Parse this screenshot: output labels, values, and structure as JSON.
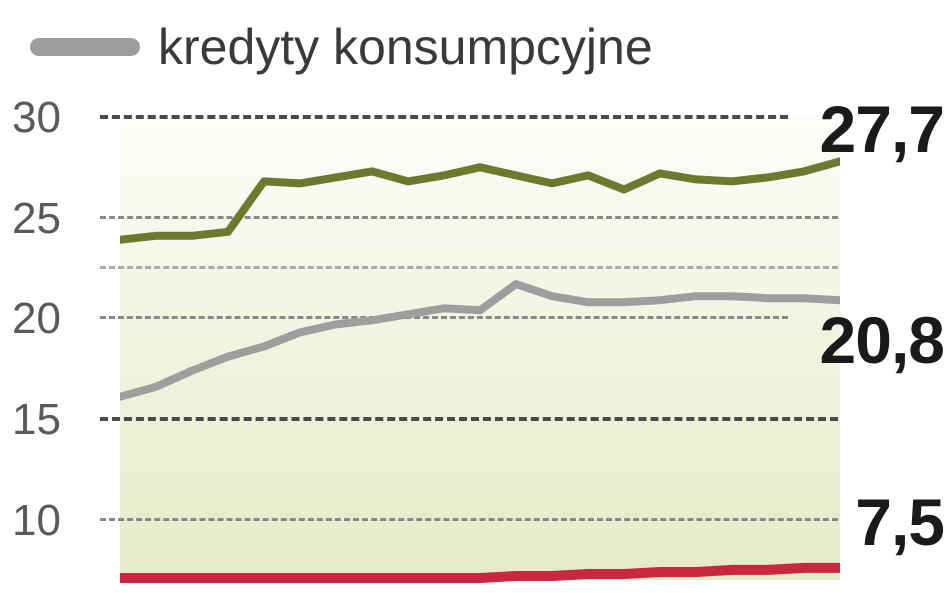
{
  "legend": {
    "swatch_color": "#9e9e9e",
    "label": "kredyty konsumpcyjne"
  },
  "chart": {
    "type": "line",
    "background_gradient_top": "rgba(200,210,130,0.05)",
    "background_gradient_bottom": "rgba(200,210,130,0.45)",
    "ylim": [
      7,
      30
    ],
    "ytick_values": [
      30,
      25,
      20,
      15,
      10
    ],
    "ytick_labels": [
      "30",
      "25",
      "20",
      "15",
      "10"
    ],
    "grid_color_primary": "#4a4a4a",
    "grid_color_faint": "#888888",
    "series": [
      {
        "name": "series-olive",
        "color": "#6b7a2e",
        "stroke_width": 8,
        "end_label": "27,7",
        "values": [
          23.8,
          24.0,
          24.0,
          24.2,
          26.7,
          26.6,
          26.9,
          27.2,
          26.7,
          27.0,
          27.4,
          27.0,
          26.6,
          27.0,
          26.3,
          27.1,
          26.8,
          26.7,
          26.9,
          27.2,
          27.7
        ]
      },
      {
        "name": "series-gray",
        "color": "#9e9e9e",
        "stroke_width": 8,
        "end_label": "20,8",
        "values": [
          16.0,
          16.5,
          17.3,
          18.0,
          18.5,
          19.2,
          19.6,
          19.8,
          20.1,
          20.4,
          20.3,
          21.6,
          21.0,
          20.7,
          20.7,
          20.8,
          21.0,
          21.0,
          20.9,
          20.9,
          20.8
        ]
      },
      {
        "name": "series-red",
        "color": "#c9263f",
        "stroke_width": 10,
        "end_label": "7,5",
        "values": [
          7.0,
          7.0,
          7.0,
          7.0,
          7.0,
          7.0,
          7.0,
          7.0,
          7.0,
          7.0,
          7.0,
          7.1,
          7.1,
          7.2,
          7.2,
          7.3,
          7.3,
          7.4,
          7.4,
          7.5,
          7.5
        ]
      }
    ]
  }
}
